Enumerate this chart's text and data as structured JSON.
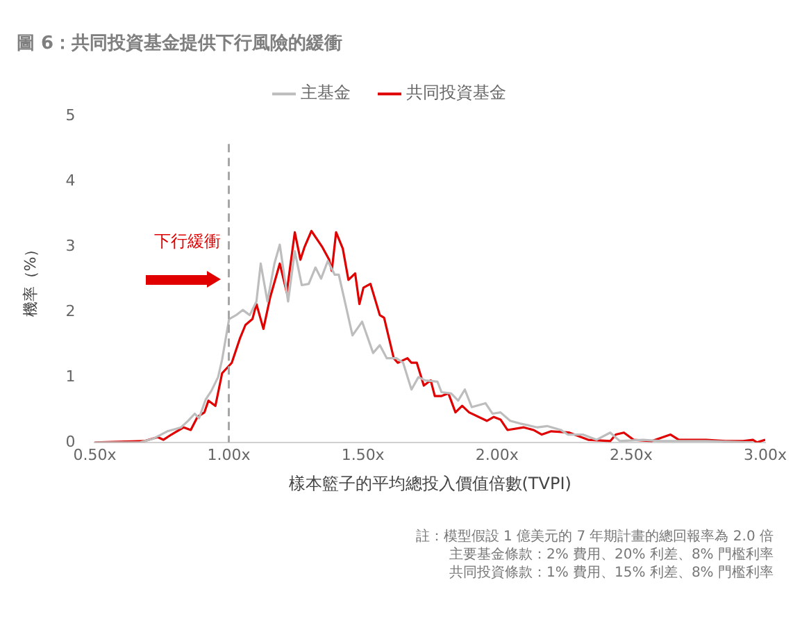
{
  "chart_data": {
    "type": "line",
    "title": "圖 6：共同投資基金提供下行風險的緩衝",
    "xlabel": "樣本籃子的平均總投入價值倍數(TVPI)",
    "ylabel": "機率（%）",
    "xlim": [
      0.5,
      3.0
    ],
    "ylim": [
      0,
      5
    ],
    "xticks": [
      {
        "value": 0.5,
        "label": "0.50x"
      },
      {
        "value": 1.0,
        "label": "1.00x"
      },
      {
        "value": 1.5,
        "label": "1.50x"
      },
      {
        "value": 2.0,
        "label": "2.00x"
      },
      {
        "value": 2.5,
        "label": "2.50x"
      },
      {
        "value": 3.0,
        "label": "3.00x"
      }
    ],
    "yticks": [
      0,
      1,
      2,
      3,
      4,
      5
    ],
    "grid": false,
    "legend": "top",
    "marker": "none",
    "line_style": "solid",
    "ref_lines": [
      {
        "axis": "x",
        "value": 1.0,
        "color": "#a6a6a6",
        "line_style": "dashed"
      }
    ],
    "series": [
      {
        "name": "主基金",
        "color": "#bdbdbd",
        "x": [
          0.5,
          0.669,
          0.72,
          0.771,
          0.822,
          0.848,
          0.873,
          0.889,
          0.914,
          0.935,
          0.96,
          0.975,
          1.001,
          1.027,
          1.052,
          1.078,
          1.103,
          1.119,
          1.144,
          1.17,
          1.19,
          1.221,
          1.246,
          1.272,
          1.298,
          1.323,
          1.344,
          1.369,
          1.395,
          1.41,
          1.436,
          1.461,
          1.497,
          1.538,
          1.563,
          1.589,
          1.625,
          1.65,
          1.681,
          1.707,
          1.732,
          1.778,
          1.793,
          1.829,
          1.855,
          1.88,
          1.906,
          1.957,
          1.983,
          2.013,
          2.049,
          2.085,
          2.151,
          2.187,
          2.238,
          2.264,
          2.32,
          2.371,
          2.422,
          2.458,
          2.545,
          2.611,
          2.78,
          2.954
        ],
        "values": [
          0,
          0,
          0.06,
          0.17,
          0.23,
          0.33,
          0.44,
          0.37,
          0.66,
          0.79,
          1.0,
          1.27,
          1.89,
          1.95,
          2.03,
          1.95,
          2.16,
          2.74,
          2.16,
          2.74,
          3.03,
          2.16,
          2.93,
          2.41,
          2.43,
          2.68,
          2.51,
          2.78,
          2.57,
          2.57,
          2.1,
          1.64,
          1.85,
          1.37,
          1.49,
          1.29,
          1.29,
          1.22,
          0.81,
          1.0,
          0.95,
          0.93,
          0.77,
          0.75,
          0.64,
          0.81,
          0.54,
          0.6,
          0.44,
          0.46,
          0.33,
          0.29,
          0.23,
          0.25,
          0.19,
          0.12,
          0.12,
          0.04,
          0.15,
          0.02,
          0.04,
          0.02,
          0.02,
          0
        ]
      },
      {
        "name": "共同投資基金",
        "color": "#e00000",
        "x": [
          0.5,
          0.684,
          0.735,
          0.756,
          0.786,
          0.832,
          0.858,
          0.883,
          0.909,
          0.924,
          0.95,
          0.975,
          1.011,
          1.042,
          1.062,
          1.088,
          1.103,
          1.129,
          1.154,
          1.19,
          1.216,
          1.246,
          1.267,
          1.282,
          1.308,
          1.349,
          1.374,
          1.384,
          1.4,
          1.425,
          1.446,
          1.471,
          1.487,
          1.502,
          1.528,
          1.563,
          1.579,
          1.615,
          1.63,
          1.666,
          1.681,
          1.701,
          1.727,
          1.753,
          1.768,
          1.793,
          1.819,
          1.845,
          1.87,
          1.896,
          1.962,
          1.988,
          2.013,
          2.039,
          2.1,
          2.136,
          2.167,
          2.202,
          2.269,
          2.34,
          2.422,
          2.443,
          2.473,
          2.509,
          2.576,
          2.647,
          2.678,
          2.78,
          2.852,
          2.918,
          2.954,
          2.969,
          3.0
        ],
        "values": [
          0,
          0.02,
          0.08,
          0.04,
          0.12,
          0.23,
          0.19,
          0.39,
          0.46,
          0.64,
          0.56,
          1.06,
          1.22,
          1.6,
          1.8,
          1.89,
          2.12,
          1.74,
          2.22,
          2.74,
          2.3,
          3.22,
          2.8,
          2.99,
          3.24,
          2.99,
          2.8,
          2.63,
          3.22,
          2.97,
          2.49,
          2.59,
          2.12,
          2.37,
          2.43,
          1.95,
          1.91,
          1.29,
          1.22,
          1.29,
          1.22,
          1.22,
          0.87,
          0.95,
          0.71,
          0.71,
          0.75,
          0.46,
          0.56,
          0.46,
          0.33,
          0.39,
          0.35,
          0.19,
          0.23,
          0.19,
          0.12,
          0.17,
          0.15,
          0.04,
          0.02,
          0.12,
          0.15,
          0.04,
          0.02,
          0.12,
          0.04,
          0.04,
          0.02,
          0.02,
          0.04,
          0,
          0.04
        ]
      }
    ],
    "annotations": [
      "下行緩衝",
      "註：模型假設 1 億美元的 7 年期計畫的總回報率為 2.0 倍",
      "主要基金條款：2% 費用、20% 利差、8% 門檻利率",
      "共同投資條款：1% 費用、15% 利差、8% 門檻利率"
    ]
  }
}
